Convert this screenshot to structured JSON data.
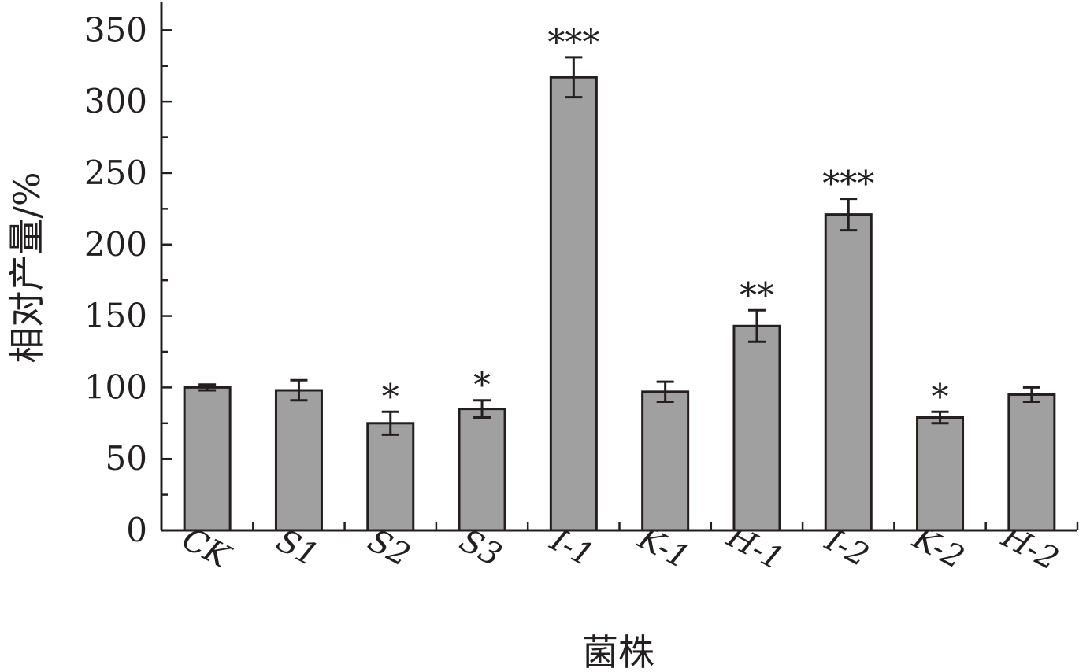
{
  "chart_data": {
    "type": "bar",
    "xlabel": "菌株",
    "ylabel": "相对产量/%",
    "ylim": [
      0,
      370
    ],
    "yticks": [
      0,
      50,
      100,
      150,
      200,
      250,
      300,
      350
    ],
    "ytick_labels": [
      "0",
      "50",
      "100",
      "150",
      "200",
      "250",
      "300",
      "350"
    ],
    "categories": [
      "CK",
      "S1",
      "S2",
      "S3",
      "I-1",
      "K-1",
      "H-1",
      "I-2",
      "K-2",
      "H-2"
    ],
    "values": [
      100,
      98,
      75,
      85,
      317,
      97,
      143,
      221,
      79,
      95
    ],
    "errors": [
      2,
      7,
      8,
      6,
      14,
      7,
      11,
      11,
      4,
      5
    ],
    "significance": [
      "",
      "",
      "*",
      "*",
      "***",
      "",
      "**",
      "***",
      "*",
      ""
    ],
    "bar_color": "#a0a0a0",
    "axis_color": "#231f20",
    "grid": false,
    "legend": "none"
  }
}
